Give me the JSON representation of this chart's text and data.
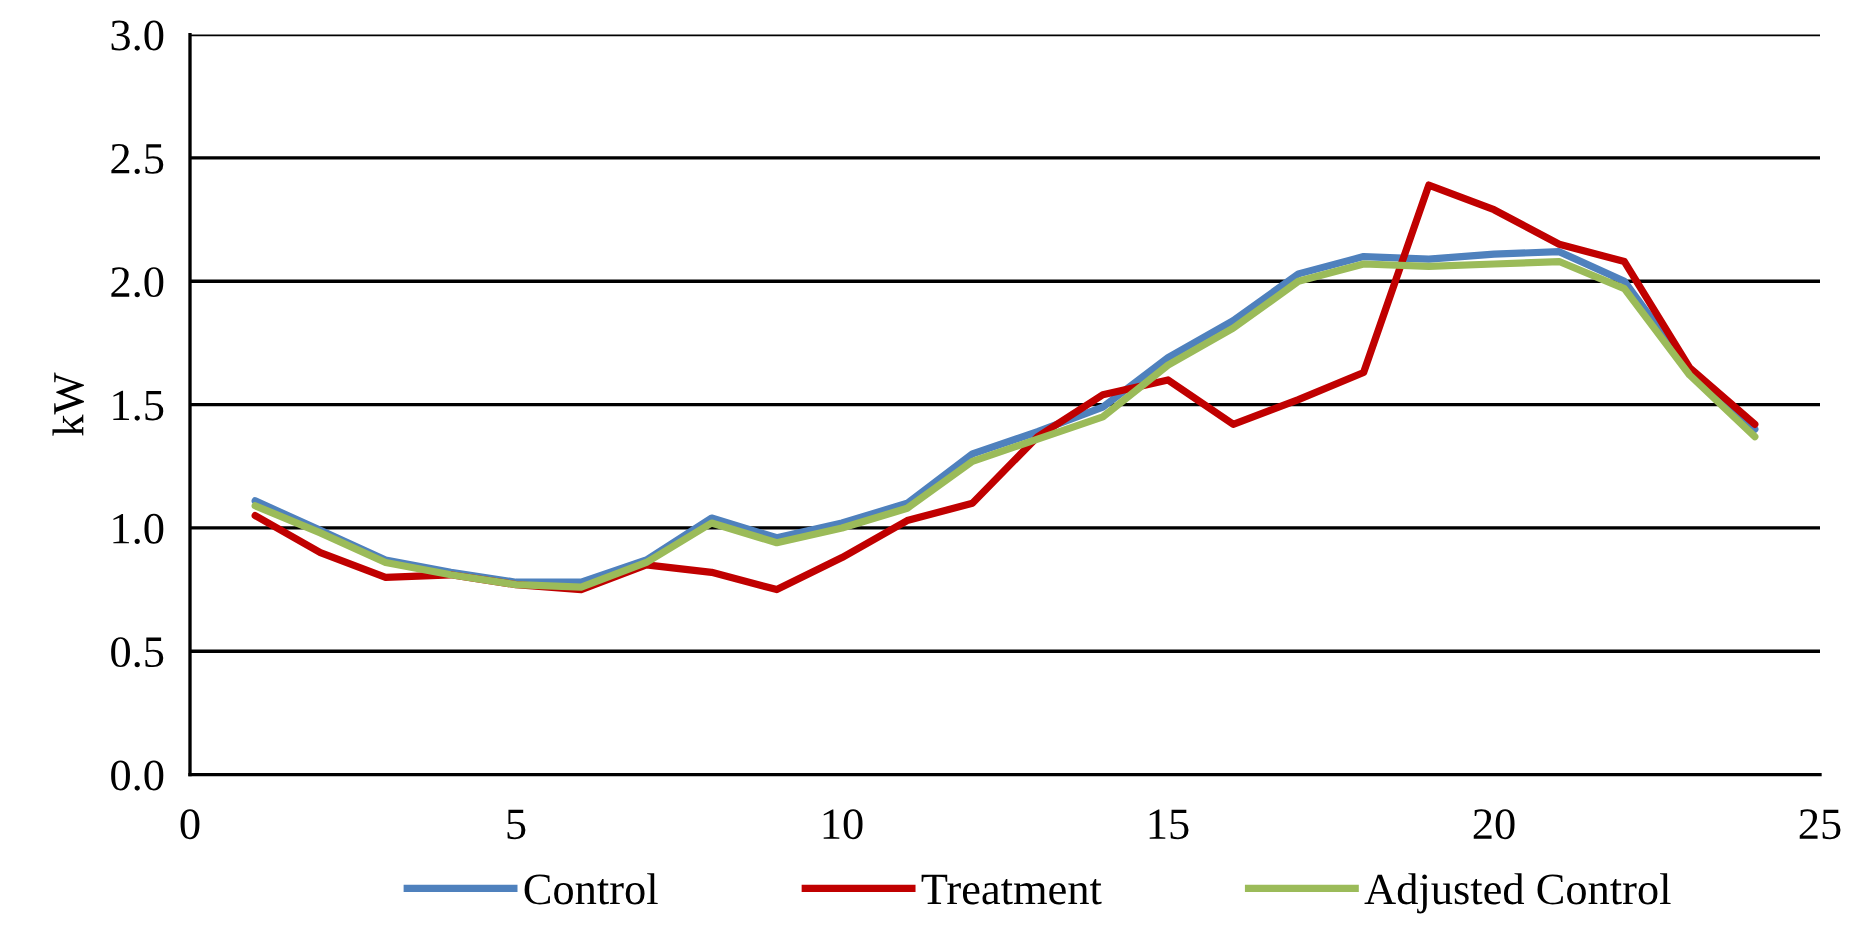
{
  "chart_data": {
    "type": "line",
    "ylabel": "kW",
    "x": [
      1,
      2,
      3,
      4,
      5,
      6,
      7,
      8,
      9,
      10,
      11,
      12,
      13,
      14,
      15,
      16,
      17,
      18,
      19,
      20,
      21,
      22,
      23,
      24
    ],
    "series": [
      {
        "name": "Control",
        "color": "#4f81bd",
        "values": [
          1.11,
          0.99,
          0.87,
          0.82,
          0.78,
          0.78,
          0.87,
          1.04,
          0.96,
          1.02,
          1.1,
          1.3,
          1.39,
          1.49,
          1.69,
          1.84,
          2.03,
          2.1,
          2.09,
          2.11,
          2.12,
          2.0,
          1.64,
          1.4
        ]
      },
      {
        "name": "Treatment",
        "color": "#c00000",
        "values": [
          1.05,
          0.9,
          0.8,
          0.81,
          0.77,
          0.75,
          0.85,
          0.82,
          0.75,
          0.88,
          1.03,
          1.1,
          1.37,
          1.54,
          1.6,
          1.42,
          1.52,
          1.63,
          2.39,
          2.29,
          2.15,
          2.08,
          1.65,
          1.42
        ]
      },
      {
        "name": "Adjusted Control",
        "color": "#9bbb59",
        "values": [
          1.09,
          0.98,
          0.86,
          0.81,
          0.77,
          0.76,
          0.86,
          1.02,
          0.94,
          1.0,
          1.08,
          1.27,
          1.36,
          1.45,
          1.66,
          1.81,
          2.0,
          2.07,
          2.06,
          2.07,
          2.08,
          1.97,
          1.62,
          1.37
        ]
      }
    ],
    "xlim": [
      0,
      25
    ],
    "xticks": [
      0,
      5,
      10,
      15,
      20,
      25
    ],
    "ylim": [
      0,
      3
    ],
    "yticks": [
      {
        "value": 0,
        "label": "0.0"
      },
      {
        "value": 0.5,
        "label": "0.5"
      },
      {
        "value": 1,
        "label": "1.0"
      },
      {
        "value": 1.5,
        "label": "1.5"
      },
      {
        "value": 2,
        "label": "2.0"
      },
      {
        "value": 2.5,
        "label": "2.5"
      },
      {
        "value": 3,
        "label": "3.0"
      }
    ],
    "grid": "y",
    "legend": "bottom",
    "marker": "none",
    "line_style": "solid"
  }
}
